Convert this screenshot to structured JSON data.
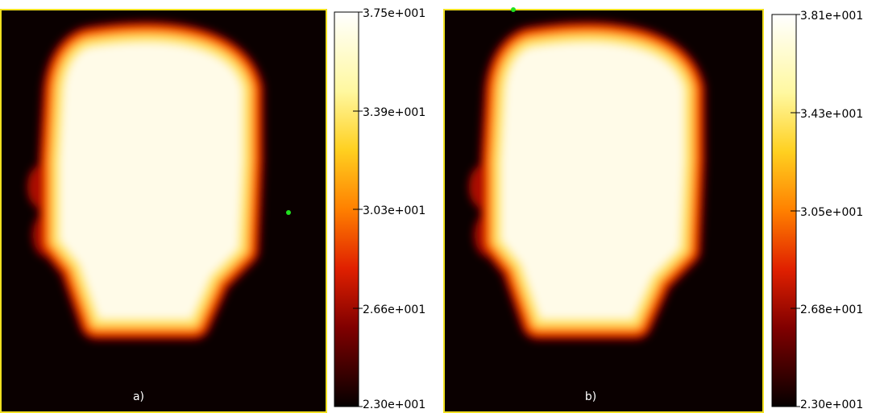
{
  "panels": [
    {
      "label": "a)",
      "colorbar": {
        "ticks": [
          "3.75e+001",
          "3.39e+001",
          "3.03e+001",
          "2.66e+001",
          "2.30e+001"
        ]
      }
    },
    {
      "label": "b)",
      "colorbar": {
        "ticks": [
          "3.81e+001",
          "3.43e+001",
          "3.05e+001",
          "2.68e+001",
          "2.30e+001"
        ]
      }
    }
  ]
}
